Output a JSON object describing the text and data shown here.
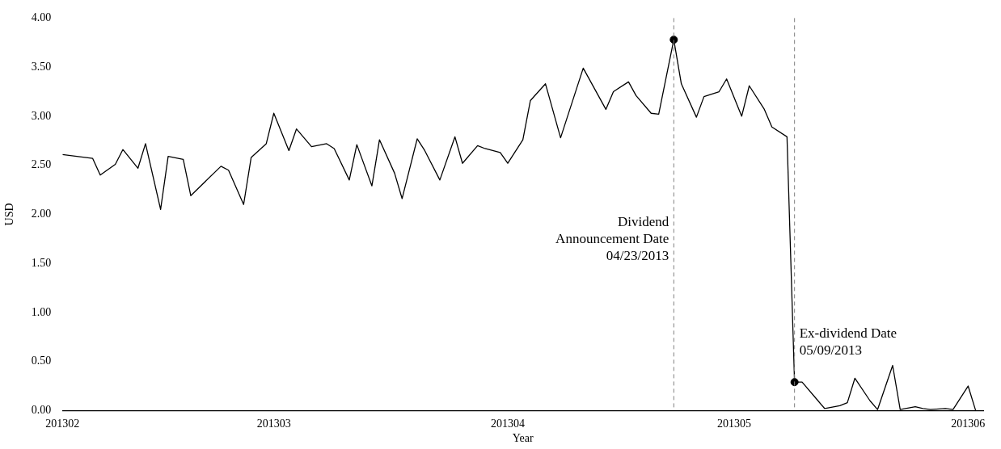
{
  "chart_data": {
    "type": "line",
    "xlabel": "Year",
    "ylabel": "USD",
    "xlim": [
      "2013-02-01",
      "2013-06-03"
    ],
    "xticks": [
      {
        "value": "2013-02-01",
        "label": "201302"
      },
      {
        "value": "2013-03-01",
        "label": "201303"
      },
      {
        "value": "2013-04-01",
        "label": "201304"
      },
      {
        "value": "2013-05-01",
        "label": "201305"
      },
      {
        "value": "2013-06-01",
        "label": "201306"
      }
    ],
    "ylim": [
      0,
      4
    ],
    "yticks": [
      {
        "value": 0,
        "label": "0.00"
      },
      {
        "value": 0.5,
        "label": "0.50"
      },
      {
        "value": 1,
        "label": "1.00"
      },
      {
        "value": 1.5,
        "label": "1.50"
      },
      {
        "value": 2,
        "label": "2.00"
      },
      {
        "value": 2.5,
        "label": "2.50"
      },
      {
        "value": 3,
        "label": "3.00"
      },
      {
        "value": 3.5,
        "label": "3.50"
      },
      {
        "value": 4,
        "label": "4.00"
      }
    ],
    "grid": false,
    "legend": false,
    "marker": "none",
    "line_style": "solid",
    "series": [
      {
        "color": "#000000",
        "x": [
          "2013-02-01",
          "2013-02-05",
          "2013-02-06",
          "2013-02-08",
          "2013-02-09",
          "2013-02-11",
          "2013-02-12",
          "2013-02-14",
          "2013-02-15",
          "2013-02-17",
          "2013-02-18",
          "2013-02-22",
          "2013-02-23",
          "2013-02-25",
          "2013-02-26",
          "2013-02-28",
          "2013-03-01",
          "2013-03-03",
          "2013-03-04",
          "2013-03-06",
          "2013-03-08",
          "2013-03-09",
          "2013-03-11",
          "2013-03-12",
          "2013-03-14",
          "2013-03-15",
          "2013-03-17",
          "2013-03-18",
          "2013-03-20",
          "2013-03-21",
          "2013-03-23",
          "2013-03-25",
          "2013-03-26",
          "2013-03-28",
          "2013-03-29",
          "2013-03-31",
          "2013-04-01",
          "2013-04-03",
          "2013-04-04",
          "2013-04-06",
          "2013-04-08",
          "2013-04-11",
          "2013-04-14",
          "2013-04-15",
          "2013-04-17",
          "2013-04-18",
          "2013-04-20",
          "2013-04-21",
          "2013-04-23",
          "2013-04-24",
          "2013-04-26",
          "2013-04-27",
          "2013-04-29",
          "2013-04-30",
          "2013-05-02",
          "2013-05-03",
          "2013-05-05",
          "2013-05-06",
          "2013-05-08",
          "2013-05-09",
          "2013-05-10",
          "2013-05-12",
          "2013-05-13",
          "2013-05-15",
          "2013-05-16",
          "2013-05-17",
          "2013-05-19",
          "2013-05-20",
          "2013-05-22",
          "2013-05-23",
          "2013-05-25",
          "2013-05-26",
          "2013-05-27",
          "2013-05-29",
          "2013-05-30",
          "2013-06-01",
          "2013-06-02"
        ],
        "values": [
          2.61,
          2.57,
          2.4,
          2.51,
          2.66,
          2.47,
          2.72,
          2.05,
          2.59,
          2.56,
          2.19,
          2.49,
          2.45,
          2.1,
          2.58,
          2.72,
          3.03,
          2.65,
          2.87,
          2.69,
          2.72,
          2.67,
          2.35,
          2.71,
          2.29,
          2.76,
          2.42,
          2.16,
          2.77,
          2.65,
          2.35,
          2.79,
          2.52,
          2.7,
          2.67,
          2.63,
          2.52,
          2.76,
          3.16,
          3.33,
          2.78,
          3.49,
          3.07,
          3.25,
          3.35,
          3.21,
          3.03,
          3.02,
          3.78,
          3.33,
          2.99,
          3.2,
          3.25,
          3.38,
          3.0,
          3.31,
          3.07,
          2.89,
          2.79,
          0.29,
          0.29,
          0.11,
          0.02,
          0.05,
          0.08,
          0.33,
          0.1,
          0.01,
          0.46,
          0.01,
          0.04,
          0.02,
          0.01,
          0.02,
          0.01,
          0.25,
          0.0
        ]
      },
      {
        "type": "scatter",
        "color": "#000000",
        "marker": "circle",
        "x": [
          "2013-04-23",
          "2013-05-09"
        ],
        "values": [
          3.78,
          0.29
        ]
      }
    ],
    "ref_lines": [
      {
        "axis": "x",
        "value": "2013-04-23",
        "label": "Dividend\nAnnouncement Date\n04/23/2013",
        "color": "#808080",
        "line_style": "dashed"
      },
      {
        "axis": "x",
        "value": "2013-05-09",
        "label": "Ex-dividend Date\n05/09/2013",
        "color": "#808080",
        "line_style": "dashed"
      }
    ]
  }
}
